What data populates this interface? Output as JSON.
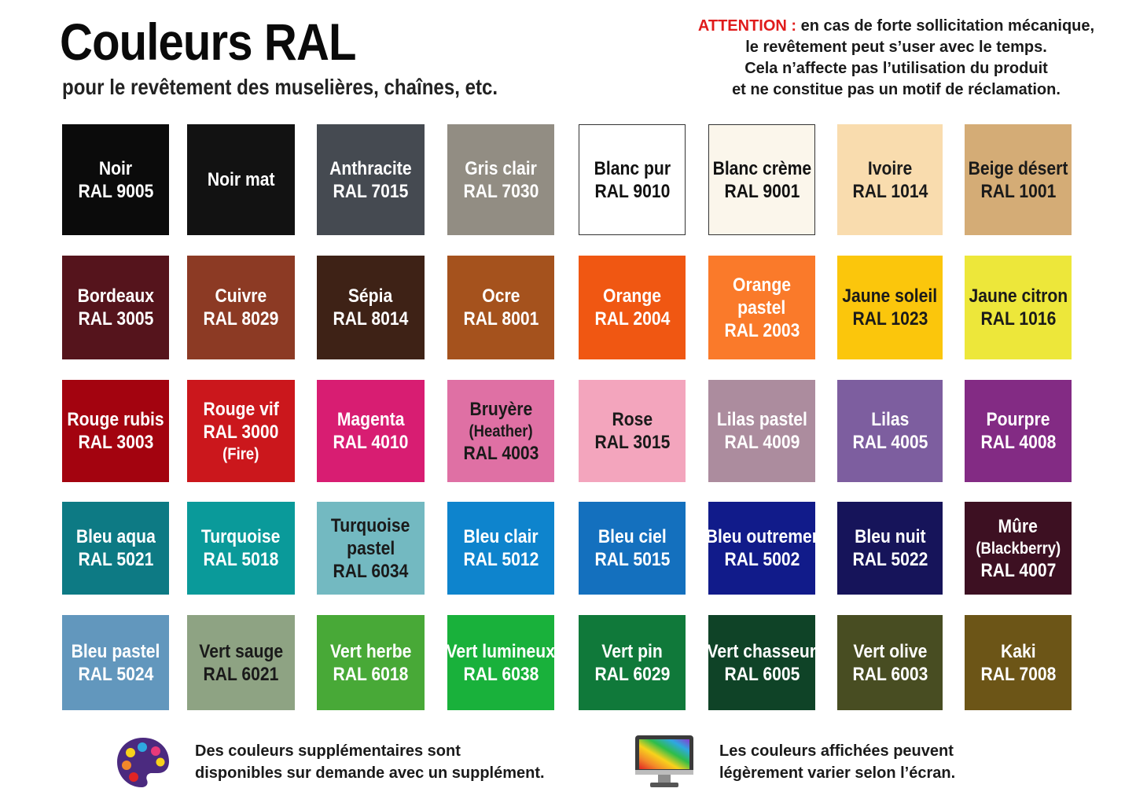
{
  "header": {
    "title": "Couleurs RAL",
    "subtitle": "pour le revêtement des muselières, chaînes, etc."
  },
  "attention": {
    "label": "ATTENTION :",
    "line1_rest": " en cas de forte sollicitation mécanique,",
    "line2": "le revêtement peut s’user avec le temps.",
    "line3": "Cela n’affecte pas l’utilisation du produit",
    "line4": "et ne constitue pas un motif de réclamation."
  },
  "swatches": [
    {
      "lines": [
        "Noir",
        "RAL 9005"
      ],
      "bg": "#0b0b0b",
      "fg": "#ffffff"
    },
    {
      "lines": [
        "Noir mat"
      ],
      "bg": "#121212",
      "fg": "#ffffff"
    },
    {
      "lines": [
        "Anthracite",
        "RAL 7015"
      ],
      "bg": "#454a51",
      "fg": "#ffffff"
    },
    {
      "lines": [
        "Gris clair",
        "RAL 7030"
      ],
      "bg": "#928d83",
      "fg": "#ffffff"
    },
    {
      "lines": [
        "Blanc pur",
        "RAL 9010"
      ],
      "bg": "#ffffff",
      "fg": "#111111",
      "border": "#333333"
    },
    {
      "lines": [
        "Blanc crème",
        "RAL 9001"
      ],
      "bg": "#fbf6eb",
      "fg": "#111111",
      "border": "#333333"
    },
    {
      "lines": [
        "Ivoire",
        "RAL 1014"
      ],
      "bg": "#f9dcae",
      "fg": "#1a1a1a"
    },
    {
      "lines": [
        "Beige désert",
        "RAL 1001"
      ],
      "bg": "#d4ac76",
      "fg": "#1a1a1a"
    },
    {
      "lines": [
        "Bordeaux",
        "RAL 3005"
      ],
      "bg": "#55141c",
      "fg": "#ffffff"
    },
    {
      "lines": [
        "Cuivre",
        "RAL 8029"
      ],
      "bg": "#8c3a24",
      "fg": "#ffffff"
    },
    {
      "lines": [
        "Sépia",
        "RAL 8014"
      ],
      "bg": "#3e2216",
      "fg": "#ffffff"
    },
    {
      "lines": [
        "Ocre",
        "RAL 8001"
      ],
      "bg": "#a5521d",
      "fg": "#ffffff"
    },
    {
      "lines": [
        "Orange",
        "RAL 2004"
      ],
      "bg": "#f05712",
      "fg": "#ffffff"
    },
    {
      "lines": [
        "Orange",
        "pastel",
        "RAL 2003"
      ],
      "bg": "#fa7a2a",
      "fg": "#ffffff"
    },
    {
      "lines": [
        "Jaune soleil",
        "RAL 1023"
      ],
      "bg": "#fbc60c",
      "fg": "#1a1a1a"
    },
    {
      "lines": [
        "Jaune citron",
        "RAL 1016"
      ],
      "bg": "#ede73a",
      "fg": "#1a1a1a"
    },
    {
      "lines": [
        "Rouge rubis",
        "RAL 3003"
      ],
      "bg": "#a3030f",
      "fg": "#ffffff"
    },
    {
      "lines": [
        "Rouge vif",
        "RAL 3000",
        "(Fire)"
      ],
      "bg": "#cb171c",
      "fg": "#ffffff"
    },
    {
      "lines": [
        "Magenta",
        "RAL 4010"
      ],
      "bg": "#d81d72",
      "fg": "#ffffff"
    },
    {
      "lines": [
        "Bruyère",
        "(Heather)",
        "RAL 4003"
      ],
      "bg": "#df70a4",
      "fg": "#1a1a1a"
    },
    {
      "lines": [
        "Rose",
        "RAL 3015"
      ],
      "bg": "#f3a5bd",
      "fg": "#1a1a1a"
    },
    {
      "lines": [
        "Lilas pastel",
        "RAL 4009"
      ],
      "bg": "#ac8c9e",
      "fg": "#ffffff"
    },
    {
      "lines": [
        "Lilas",
        "RAL 4005"
      ],
      "bg": "#7d5e9f",
      "fg": "#ffffff"
    },
    {
      "lines": [
        "Pourpre",
        "RAL 4008"
      ],
      "bg": "#832b84",
      "fg": "#ffffff"
    },
    {
      "lines": [
        "Bleu aqua",
        "RAL 5021"
      ],
      "bg": "#0d7a84",
      "fg": "#ffffff"
    },
    {
      "lines": [
        "Turquoise",
        "RAL 5018"
      ],
      "bg": "#0a9a9a",
      "fg": "#ffffff"
    },
    {
      "lines": [
        "Turquoise",
        "pastel",
        "RAL 6034"
      ],
      "bg": "#73b9c1",
      "fg": "#1a1a1a"
    },
    {
      "lines": [
        "Bleu clair",
        "RAL 5012"
      ],
      "bg": "#0e84cd",
      "fg": "#ffffff"
    },
    {
      "lines": [
        "Bleu ciel",
        "RAL 5015"
      ],
      "bg": "#1470be",
      "fg": "#ffffff"
    },
    {
      "lines": [
        "Bleu outremer",
        "RAL 5002"
      ],
      "bg": "#111b8a",
      "fg": "#ffffff"
    },
    {
      "lines": [
        "Bleu nuit",
        "RAL 5022"
      ],
      "bg": "#16145a",
      "fg": "#ffffff"
    },
    {
      "lines": [
        "Mûre",
        "(Blackberry)",
        "RAL 4007"
      ],
      "bg": "#3d1022",
      "fg": "#ffffff"
    },
    {
      "lines": [
        "Bleu pastel",
        "RAL 5024"
      ],
      "bg": "#6297bd",
      "fg": "#ffffff"
    },
    {
      "lines": [
        "Vert sauge",
        "RAL 6021"
      ],
      "bg": "#8ea383",
      "fg": "#1a1a1a"
    },
    {
      "lines": [
        "Vert herbe",
        "RAL 6018"
      ],
      "bg": "#48a937",
      "fg": "#ffffff"
    },
    {
      "lines": [
        "Vert lumineux",
        "RAL 6038"
      ],
      "bg": "#19b13b",
      "fg": "#ffffff"
    },
    {
      "lines": [
        "Vert pin",
        "RAL 6029"
      ],
      "bg": "#10793a",
      "fg": "#ffffff"
    },
    {
      "lines": [
        "Vert chasseur",
        "RAL 6005"
      ],
      "bg": "#0f4327",
      "fg": "#ffffff"
    },
    {
      "lines": [
        "Vert olive",
        "RAL 6003"
      ],
      "bg": "#484d22",
      "fg": "#ffffff"
    },
    {
      "lines": [
        "Kaki",
        "RAL 7008"
      ],
      "bg": "#6c5517",
      "fg": "#ffffff"
    }
  ],
  "footer": {
    "left_line1": "Des couleurs supplémentaires sont",
    "left_line2": "disponibles sur demande avec un supplément.",
    "left_icon": "palette-icon",
    "right_line1": "Les couleurs affichées peuvent",
    "right_line2": "légèrement varier selon l’écran.",
    "right_icon": "monitor-icon"
  }
}
